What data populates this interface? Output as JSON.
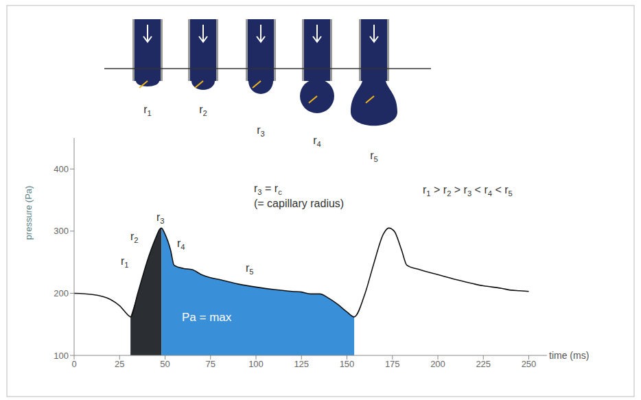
{
  "chart_data": {
    "type": "line",
    "xlabel": "time (ms)",
    "ylabel": "pressure (Pa)",
    "xlim": [
      0,
      260
    ],
    "xticks": [
      0,
      25,
      50,
      75,
      100,
      125,
      150,
      175,
      200,
      225,
      250
    ],
    "ylim": [
      100,
      450
    ],
    "yticks": [
      100,
      200,
      300,
      400
    ],
    "color": "#111111",
    "x": [
      0,
      10,
      20,
      25,
      30,
      31,
      35,
      40,
      45,
      47,
      48,
      50,
      53,
      55,
      60,
      65,
      70,
      75,
      80,
      90,
      100,
      110,
      120,
      125,
      130,
      135,
      140,
      145,
      150,
      154,
      160,
      165,
      170,
      173,
      176,
      180,
      183,
      190,
      200,
      210,
      220,
      225,
      235,
      240,
      245,
      250
    ],
    "values": [
      200,
      198,
      190,
      180,
      164,
      162,
      200,
      250,
      290,
      303,
      305,
      295,
      270,
      245,
      240,
      238,
      230,
      225,
      222,
      215,
      210,
      206,
      203,
      202,
      199,
      199,
      192,
      182,
      170,
      162,
      200,
      250,
      295,
      305,
      300,
      270,
      245,
      238,
      230,
      222,
      215,
      212,
      208,
      205,
      204,
      203
    ],
    "shaded_regions": [
      {
        "from": 31,
        "to": 48,
        "color": "#2b2e33"
      },
      {
        "from": 48,
        "to": 154,
        "color": "#3a8fd9"
      }
    ],
    "area_label": "Pa = max",
    "annotations": [
      "r1",
      "r2",
      "r3",
      "r4",
      "r5",
      "r3 = rc",
      "(= capillary radius)",
      "r1 > r2 > r3 < r4 < r5"
    ]
  },
  "diagram": {
    "droplet_labels": [
      "r1",
      "r2",
      "r3",
      "r4",
      "r5"
    ]
  }
}
